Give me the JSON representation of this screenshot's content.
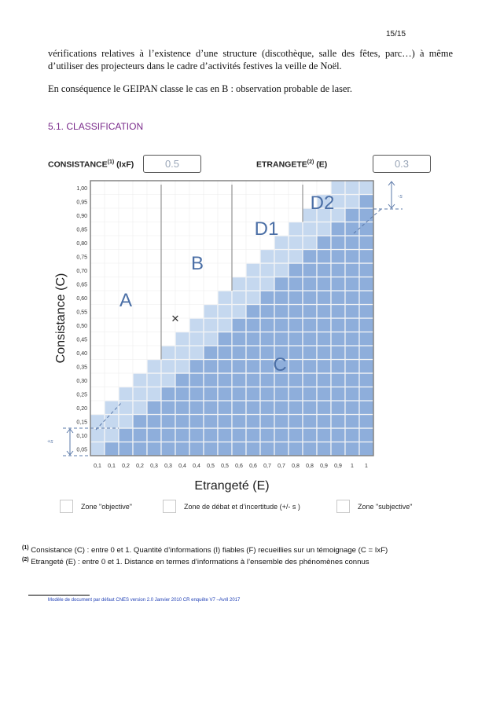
{
  "page": {
    "number": "15/15",
    "para1": "vérifications relatives à l’existence d’une structure (discothèque, salle des fêtes, parc…) à même d’utiliser des projecteurs dans le cadre d’activités festives la veille de Noël.",
    "para2": "En conséquence le GEIPAN classe le cas en B : observation probable de laser.",
    "section_heading": "5.1. CLASSIFICATION",
    "consistance_label": "CONSISTANCE",
    "consistance_sup": "(1)",
    "consistance_suffix": " (IxF)",
    "consistance_value": "0.5",
    "etrangete_label": "ETRANGETE",
    "etrangete_sup": "(2)",
    "etrangete_suffix": " (E)",
    "etrangete_value": "0.3",
    "legend": [
      {
        "label": "Zone \"objective\"",
        "color": "#ffffff"
      },
      {
        "label": "Zone de débat et d’incertitude (+/- s )",
        "color": "#c5d8ef"
      },
      {
        "label": "Zone \"subjective\"",
        "color": "#8eaedb"
      }
    ],
    "footnote1_mark": "(1)",
    "footnote1": " Consistance (C) : entre 0 et 1. Quantité d’informations (I) fiables (F) recueillies sur un témoignage (C = IxF)",
    "footnote2_mark": "(2)",
    "footnote2": " Etrangeté (E) : entre 0 et 1. Distance en termes d’informations à l’ensemble des phénomènes connus",
    "template_note": "Modèle de document par défaut CNES version 2.0 Janvier 2010 CR enquête V7 –Avril 2017"
  },
  "chart_data": {
    "type": "heatmap",
    "title": "",
    "xlabel": "Etrangeté (E)",
    "ylabel": "Consistance (C)",
    "x_tick_labels": [
      "0,1",
      "0,1",
      "0,2",
      "0,2",
      "0,3",
      "0,3",
      "0,4",
      "0,4",
      "0,5",
      "0,5",
      "0,6",
      "0,6",
      "0,7",
      "0,7",
      "0,8",
      "0,8",
      "0,9",
      "0,9",
      "1",
      "1"
    ],
    "y_tick_labels": [
      "1,00",
      "0,95",
      "0,90",
      "0,85",
      "0,80",
      "0,75",
      "0,70",
      "0,65",
      "0,60",
      "0,55",
      "0,50",
      "0,45",
      "0,40",
      "0,35",
      "0,30",
      "0,25",
      "0,20",
      "0,15",
      "0,10",
      "0,05"
    ],
    "grid_size": 20,
    "zones": {
      "objective_color": "#ffffff",
      "debate_color": "#c5d8ef",
      "subjective_color": "#8eaedb"
    },
    "region_labels": [
      "A",
      "B",
      "D1",
      "D2",
      "C"
    ],
    "boundary_x": [
      0.25,
      0.5,
      0.75
    ],
    "margin_label_top": "-s",
    "margin_label_bottom": "+s",
    "marker": {
      "E": 0.3,
      "C": 0.5,
      "symbol": "✕"
    }
  }
}
